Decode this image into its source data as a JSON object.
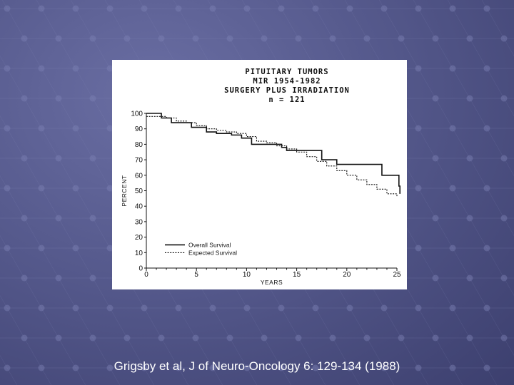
{
  "slide": {
    "citation": "Grigsby et al, J of Neuro-Oncology 6: 129-134 (1988)",
    "background_color": "#55598c"
  },
  "chart_data": {
    "type": "line",
    "title": [
      "PITUITARY TUMORS",
      "MIR 1954-1982",
      "SURGERY PLUS IRRADIATION",
      "n = 121"
    ],
    "xlabel": "YEARS",
    "ylabel": "PERCENT",
    "xlim": [
      0,
      25
    ],
    "ylim": [
      0,
      100
    ],
    "xticks": [
      0,
      5,
      10,
      15,
      20,
      25
    ],
    "yticks": [
      0,
      10,
      20,
      30,
      40,
      50,
      60,
      70,
      80,
      90,
      100
    ],
    "step": true,
    "legend_position": "bottom-left",
    "series": [
      {
        "name": "Overall Survival",
        "style": "solid",
        "color": "#111111",
        "points": [
          [
            0,
            100
          ],
          [
            1.5,
            97
          ],
          [
            2.5,
            94
          ],
          [
            4,
            94
          ],
          [
            4.5,
            91
          ],
          [
            5.5,
            91
          ],
          [
            6,
            88
          ],
          [
            7,
            87
          ],
          [
            8.5,
            86
          ],
          [
            9.5,
            84
          ],
          [
            10.5,
            80
          ],
          [
            11.5,
            80
          ],
          [
            13.5,
            78
          ],
          [
            14,
            76
          ],
          [
            17,
            76
          ],
          [
            17.5,
            70
          ],
          [
            18.3,
            70
          ],
          [
            19,
            67
          ],
          [
            23,
            67
          ],
          [
            23.5,
            60
          ],
          [
            25,
            60
          ],
          [
            25.2,
            53
          ],
          [
            25.3,
            48
          ]
        ]
      },
      {
        "name": "Expected Survival",
        "style": "dashed",
        "color": "#111111",
        "points": [
          [
            0,
            98
          ],
          [
            2,
            97
          ],
          [
            3,
            95
          ],
          [
            4,
            94
          ],
          [
            5,
            92
          ],
          [
            6,
            90
          ],
          [
            7,
            89
          ],
          [
            8,
            88
          ],
          [
            9,
            87
          ],
          [
            10,
            85
          ],
          [
            11,
            82
          ],
          [
            12,
            81
          ],
          [
            13,
            79
          ],
          [
            14,
            77
          ],
          [
            15,
            75
          ],
          [
            16,
            72
          ],
          [
            17,
            69
          ],
          [
            18,
            66
          ],
          [
            19,
            63
          ],
          [
            20,
            60
          ],
          [
            21,
            57
          ],
          [
            22,
            54
          ],
          [
            23,
            51
          ],
          [
            24,
            48
          ],
          [
            25,
            46
          ]
        ]
      }
    ]
  }
}
